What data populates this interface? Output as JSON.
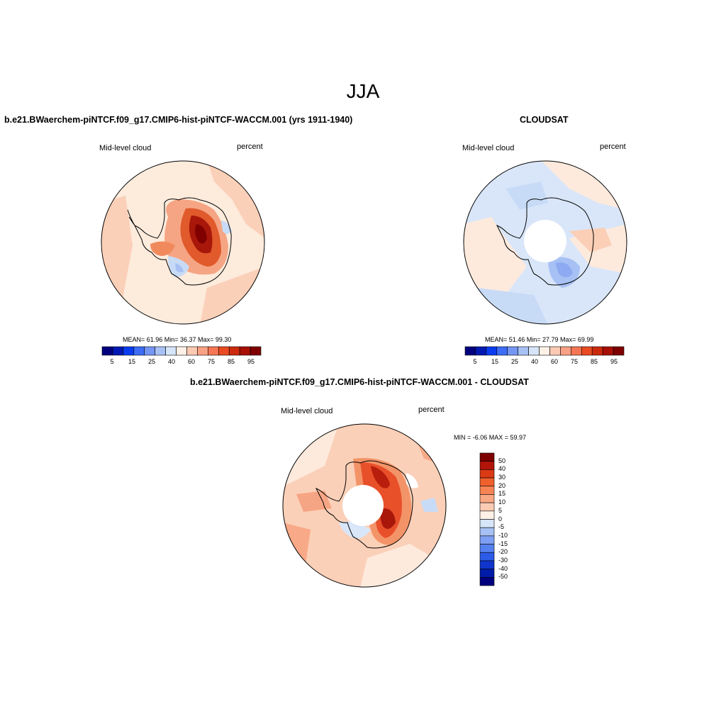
{
  "main_title": "JJA",
  "panels": [
    {
      "title": "b.e21.BWaerchem-piNTCF.f09_g17.CMIP6-hist-piNTCF-WACCM.001 (yrs 1911-1940)",
      "left_label": "Mid-level cloud",
      "right_label": "percent",
      "stats": "MEAN=  61.96   Min=  36.37   Max=  99.30"
    },
    {
      "title": "CLOUDSAT",
      "left_label": "Mid-level cloud",
      "right_label": "percent",
      "stats": "MEAN=  51.46   Min=  27.79   Max=  69.99"
    },
    {
      "title": "b.e21.BWaerchem-piNTCF.f09_g17.CMIP6-hist-piNTCF-WACCM.001 - CLOUDSAT",
      "left_label": "Mid-level cloud",
      "right_label": "percent",
      "stats": "MIN =  -6.06 MAX =  59.97"
    }
  ],
  "colorbar_abs": {
    "colors": [
      "#00007f",
      "#0019b2",
      "#0a3cef",
      "#3d6cf5",
      "#7596f2",
      "#a8c1f4",
      "#d7e5f9",
      "#fff1e7",
      "#fccab3",
      "#f9a184",
      "#f57654",
      "#ea4a22",
      "#cc2a0d",
      "#a80f05",
      "#7f0000"
    ],
    "labels": [
      "5",
      "15",
      "25",
      "40",
      "60",
      "75",
      "85",
      "95"
    ]
  },
  "colorbar_diff": {
    "colors": [
      "#7f0000",
      "#b2140a",
      "#db3a14",
      "#f0602d",
      "#f88456",
      "#f9a884",
      "#fbcbb4",
      "#fff1e7",
      "#d7e5f9",
      "#a8c1f4",
      "#7f9ff4",
      "#5580f0",
      "#2c5be8",
      "#0f35cc",
      "#001ba8",
      "#00007f"
    ],
    "labels": [
      "50",
      "40",
      "30",
      "20",
      "15",
      "10",
      "5",
      "0",
      "-5",
      "-10",
      "-15",
      "-20",
      "-30",
      "-40",
      "-50"
    ]
  }
}
